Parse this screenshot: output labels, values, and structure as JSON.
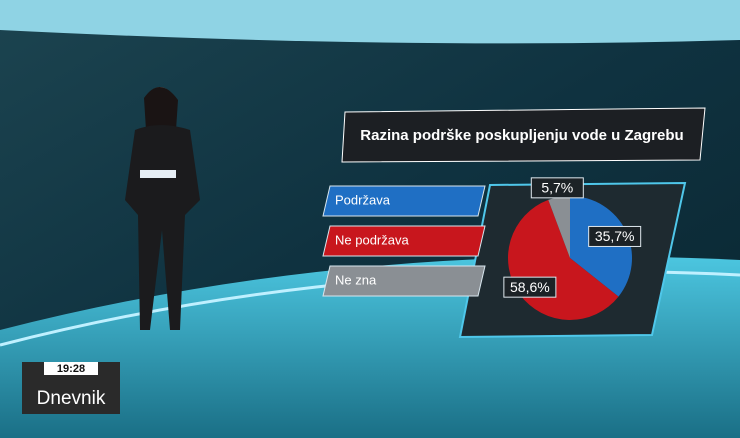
{
  "chart_data": {
    "type": "pie",
    "title": "Razina podrške poskupljenju vode u Zagrebu",
    "categories": [
      "Podržava",
      "Ne podržava",
      "Ne zna"
    ],
    "values": [
      35.7,
      58.6,
      5.7
    ],
    "value_labels": [
      "35,7%",
      "58,6%",
      "5,7%"
    ],
    "colors": [
      "#1f6fc4",
      "#c8161d",
      "#8a8f94"
    ]
  },
  "overlay": {
    "time": "19:28",
    "show": "Dnevnik"
  }
}
